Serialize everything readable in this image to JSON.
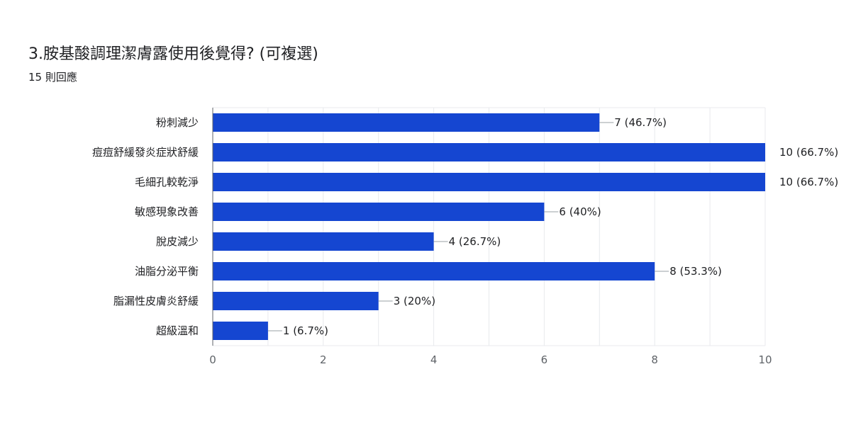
{
  "question": {
    "title": "3.胺基酸調理潔膚露使用後覺得? (可複選)",
    "responses": "15 則回應"
  },
  "colors": {
    "bar": "#1546d1",
    "grid": "#e8eaed",
    "axis": "#9aa0a6",
    "text": "#202124"
  },
  "chart_data": {
    "type": "bar",
    "orientation": "horizontal",
    "categories": [
      "粉刺減少",
      "痘痘舒緩發炎症狀舒緩",
      "毛細孔較乾淨",
      "敏感現象改善",
      "脫皮減少",
      "油脂分泌平衡",
      "脂漏性皮膚炎舒緩",
      "超級溫和"
    ],
    "values": [
      7,
      10,
      10,
      6,
      4,
      8,
      3,
      1
    ],
    "value_labels": [
      "7 (46.7%)",
      "10 (66.7%)",
      "10 (66.7%)",
      "6 (40%)",
      "4 (26.7%)",
      "8 (53.3%)",
      "3 (20%)",
      "1 (6.7%)"
    ],
    "x_ticks": [
      "0",
      "2",
      "4",
      "6",
      "8",
      "10"
    ],
    "xlim": [
      0,
      10
    ],
    "grid": true
  }
}
